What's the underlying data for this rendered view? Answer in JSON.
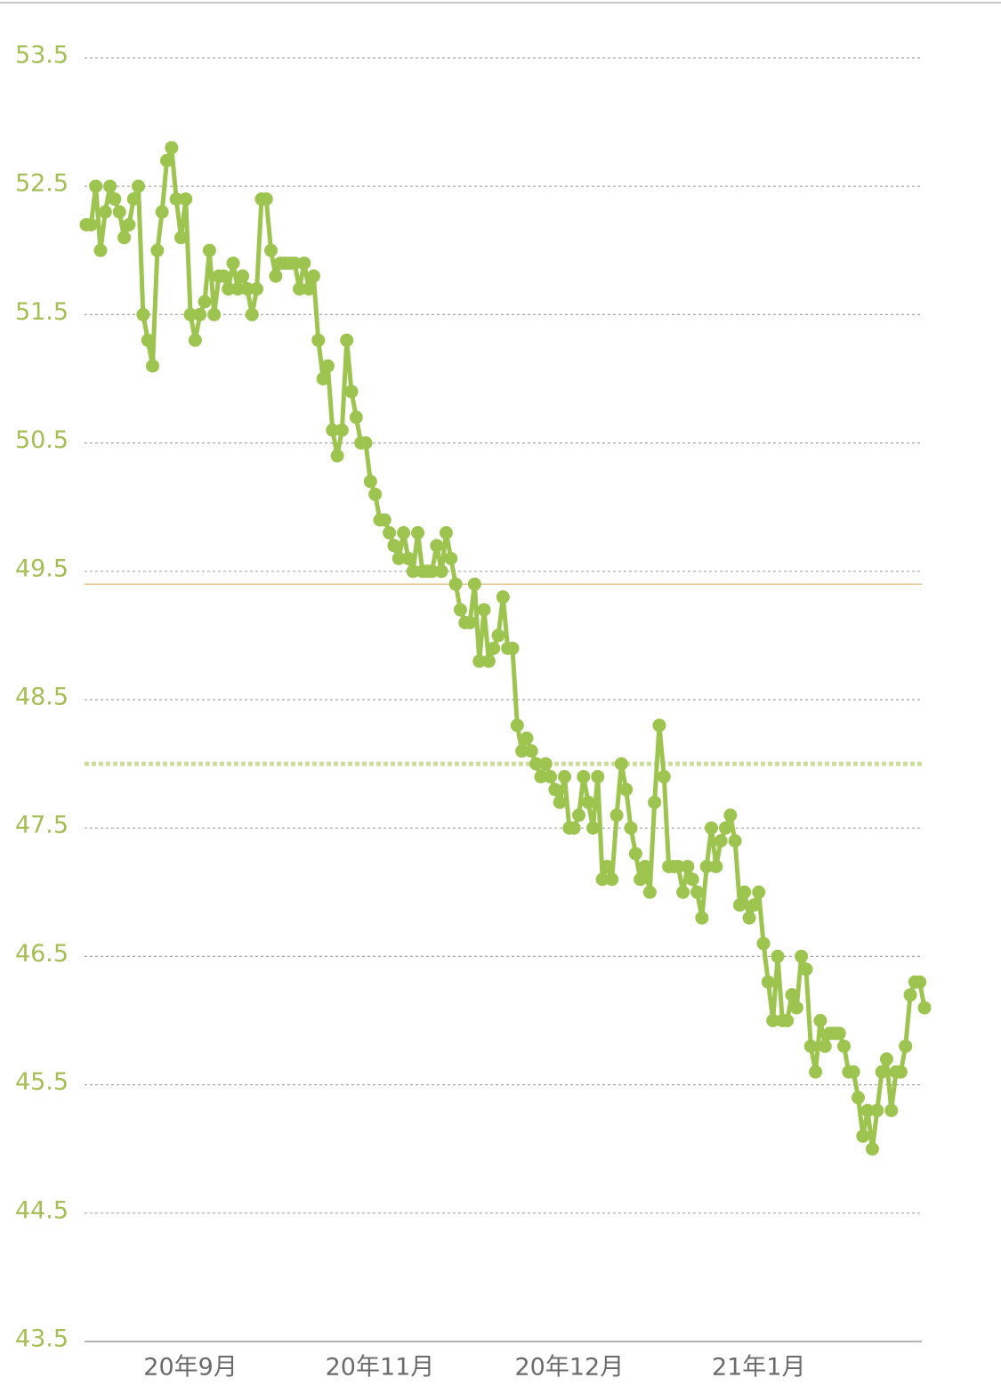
{
  "chart_data": {
    "type": "line",
    "categories": [
      null,
      null,
      null,
      null,
      null,
      null,
      null,
      null,
      null,
      null,
      null,
      null,
      null,
      null,
      null,
      null,
      null,
      null,
      null,
      null,
      null,
      null,
      "20年9月",
      null,
      null,
      null,
      null,
      null,
      null,
      null,
      null,
      null,
      null,
      null,
      null,
      null,
      null,
      null,
      null,
      null,
      null,
      null,
      null,
      null,
      null,
      null,
      null,
      null,
      null,
      null,
      null,
      null,
      null,
      null,
      null,
      null,
      null,
      null,
      null,
      null,
      null,
      null,
      "20年11月",
      null,
      null,
      null,
      null,
      null,
      null,
      null,
      null,
      null,
      null,
      null,
      null,
      null,
      null,
      null,
      null,
      null,
      null,
      null,
      null,
      null,
      null,
      null,
      null,
      null,
      null,
      null,
      null,
      null,
      null,
      null,
      null,
      null,
      null,
      null,
      null,
      null,
      null,
      null,
      "20年12月",
      null,
      null,
      null,
      null,
      null,
      null,
      null,
      null,
      null,
      null,
      null,
      null,
      null,
      null,
      null,
      null,
      null,
      null,
      null,
      null,
      null,
      null,
      null,
      null,
      null,
      null,
      null,
      null,
      null,
      null,
      null,
      null,
      null,
      null,
      null,
      null,
      null,
      null,
      null,
      "21年1月",
      null,
      null,
      null,
      null,
      null,
      null,
      null,
      null,
      null,
      null,
      null,
      null,
      null,
      null,
      null,
      null,
      null,
      null,
      null,
      null,
      null,
      null,
      null,
      null,
      null,
      null,
      null,
      null,
      null,
      null,
      null,
      null,
      null,
      null,
      null
    ],
    "values": [
      52.2,
      52.2,
      52.5,
      52.0,
      52.3,
      52.5,
      52.4,
      52.3,
      52.1,
      52.2,
      52.4,
      52.5,
      51.5,
      51.3,
      51.1,
      52.0,
      52.3,
      52.7,
      52.8,
      52.4,
      52.1,
      52.4,
      51.5,
      51.3,
      51.5,
      51.6,
      52.0,
      51.5,
      51.8,
      51.8,
      51.7,
      51.9,
      51.7,
      51.8,
      51.7,
      51.5,
      51.7,
      52.4,
      52.4,
      52.0,
      51.8,
      51.9,
      51.9,
      51.9,
      51.9,
      51.7,
      51.9,
      51.7,
      51.8,
      51.3,
      51.0,
      51.1,
      50.6,
      50.4,
      50.6,
      51.3,
      50.9,
      50.7,
      50.5,
      50.5,
      50.2,
      50.1,
      49.9,
      49.9,
      49.8,
      49.7,
      49.6,
      49.8,
      49.6,
      49.5,
      49.8,
      49.5,
      49.5,
      49.5,
      49.7,
      49.5,
      49.8,
      49.6,
      49.4,
      49.2,
      49.1,
      49.1,
      49.4,
      48.8,
      49.2,
      48.8,
      48.9,
      49.0,
      49.3,
      48.9,
      48.9,
      48.3,
      48.1,
      48.2,
      48.1,
      48.0,
      47.9,
      48.0,
      47.9,
      47.8,
      47.7,
      47.9,
      47.5,
      47.5,
      47.6,
      47.9,
      47.7,
      47.5,
      47.9,
      47.1,
      47.2,
      47.1,
      47.6,
      48.0,
      47.8,
      47.5,
      47.3,
      47.1,
      47.2,
      47.0,
      47.7,
      48.3,
      47.9,
      47.2,
      47.2,
      47.2,
      47.0,
      47.2,
      47.1,
      47.0,
      46.8,
      47.2,
      47.5,
      47.2,
      47.4,
      47.5,
      47.6,
      47.4,
      46.9,
      47.0,
      46.8,
      46.9,
      47.0,
      46.6,
      46.3,
      46.0,
      46.5,
      46.0,
      46.0,
      46.2,
      46.1,
      46.5,
      46.4,
      45.8,
      45.6,
      46.0,
      45.8,
      45.9,
      45.9,
      45.9,
      45.8,
      45.6,
      45.6,
      45.4,
      45.1,
      45.3,
      45.0,
      45.3,
      45.6,
      45.7,
      45.3,
      45.6,
      45.6,
      45.8,
      46.2,
      46.3,
      46.3,
      46.1
    ],
    "color": "#9cc44f",
    "ylim": [
      43.5,
      53.5
    ],
    "yticks": [
      43.5,
      44.5,
      45.5,
      46.5,
      47.5,
      48.5,
      49.5,
      50.5,
      51.5,
      52.5,
      53.5
    ],
    "grid": true,
    "reference_lines": [
      {
        "value": 49.4,
        "color": "#e6c38e",
        "style": "solid"
      },
      {
        "value": 48.0,
        "color": "#c9df9a",
        "style": "dashed"
      }
    ]
  }
}
